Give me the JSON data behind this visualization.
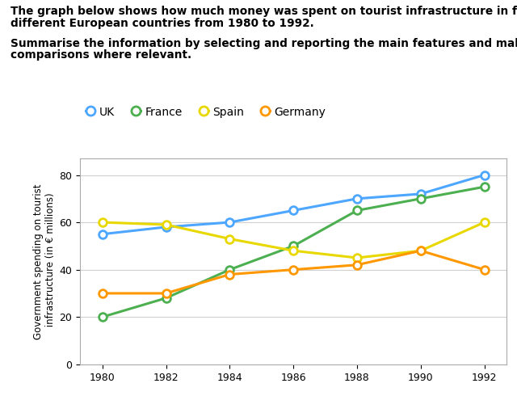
{
  "title_line1": "The graph below shows how much money was spent on tourist infrastructure in four",
  "title_line2": "different European countries from 1980 to 1992.",
  "subtitle_line1": "Summarise the information by selecting and reporting the main features and make",
  "subtitle_line2": "comparisons where relevant.",
  "ylabel": "Government spending on tourist\n infrastructure (in € millions)",
  "years": [
    1980,
    1982,
    1984,
    1986,
    1988,
    1990,
    1992
  ],
  "UK": [
    55,
    58,
    60,
    65,
    70,
    72,
    80
  ],
  "France": [
    20,
    28,
    40,
    50,
    65,
    70,
    75
  ],
  "Spain": [
    60,
    59,
    53,
    48,
    45,
    48,
    60
  ],
  "Germany": [
    30,
    30,
    38,
    40,
    42,
    48,
    40
  ],
  "colors": {
    "UK": "#4da6ff",
    "France": "#4caf50",
    "Spain": "#e8d800",
    "Germany": "#ff9800"
  },
  "ylim": [
    0,
    87
  ],
  "yticks": [
    0,
    20,
    40,
    60,
    80
  ],
  "background_color": "#ffffff",
  "grid_color": "#d0d0d0"
}
